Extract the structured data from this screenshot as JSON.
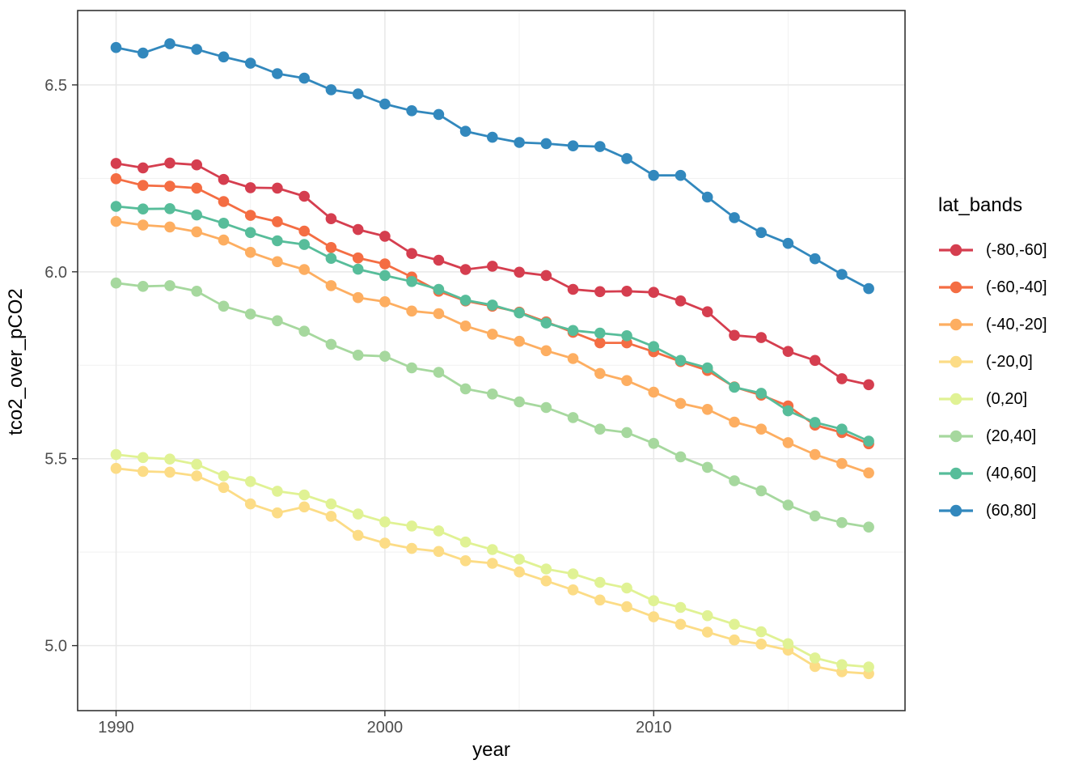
{
  "figure": {
    "background": "#ffffff",
    "panel": {
      "border_color": "#333333",
      "grid_major_color": "#e8e8e8",
      "grid_minor_color": "#f1f1f1",
      "tick_color": "#333333",
      "tick_label_color": "#4d4d4d"
    },
    "x_axis_title": "year",
    "y_axis_title": "tco2_over_pCO2"
  },
  "legend": {
    "title": "lat_bands",
    "position": "right"
  },
  "chart_data": {
    "type": "line",
    "title": "",
    "xlabel": "year",
    "ylabel": "tco2_over_pCO2",
    "grid": "on",
    "legend_position": "right",
    "x_ticks": [
      1990,
      2000,
      2010
    ],
    "x_tick_labels": [
      "1990",
      "2000",
      "2010"
    ],
    "x_minor_ticks": [
      1995,
      2005,
      2015
    ],
    "y_ticks": [
      5.0,
      5.5,
      6.0,
      6.5
    ],
    "y_tick_labels": [
      "5.0",
      "5.5",
      "6.0",
      "6.5"
    ],
    "y_minor_ticks": [
      5.25,
      5.75,
      6.25
    ],
    "xlim": [
      1988.57,
      2019.35
    ],
    "ylim": [
      4.826,
      6.699
    ],
    "x": [
      1990,
      1991,
      1992,
      1993,
      1994,
      1995,
      1996,
      1997,
      1998,
      1999,
      2000,
      2001,
      2002,
      2003,
      2004,
      2005,
      2006,
      2007,
      2008,
      2009,
      2010,
      2011,
      2012,
      2013,
      2014,
      2015,
      2016,
      2017,
      2018
    ],
    "series": [
      {
        "name": "(-80,-60]",
        "color": "#d53e4f",
        "values": [
          6.29,
          6.278,
          6.291,
          6.286,
          6.247,
          6.225,
          6.224,
          6.202,
          6.142,
          6.113,
          6.095,
          6.049,
          6.031,
          6.006,
          6.015,
          5.999,
          5.99,
          5.953,
          5.947,
          5.948,
          5.945,
          5.922,
          5.893,
          5.83,
          5.824,
          5.787,
          5.763,
          5.714,
          5.698
        ]
      },
      {
        "name": "(-60,-40]",
        "color": "#f46d43",
        "values": [
          6.249,
          6.231,
          6.229,
          6.224,
          6.188,
          6.151,
          6.134,
          6.109,
          6.065,
          6.037,
          6.021,
          5.986,
          5.948,
          5.922,
          5.908,
          5.892,
          5.866,
          5.838,
          5.81,
          5.81,
          5.786,
          5.76,
          5.736,
          5.692,
          5.67,
          5.641,
          5.59,
          5.57,
          5.54
        ]
      },
      {
        "name": "(-40,-20]",
        "color": "#fdae61",
        "values": [
          6.135,
          6.125,
          6.12,
          6.107,
          6.085,
          6.052,
          6.027,
          6.006,
          5.963,
          5.931,
          5.92,
          5.895,
          5.888,
          5.855,
          5.833,
          5.814,
          5.789,
          5.768,
          5.728,
          5.709,
          5.678,
          5.648,
          5.632,
          5.598,
          5.579,
          5.543,
          5.511,
          5.487,
          5.462
        ]
      },
      {
        "name": "(-20,0]",
        "color": "#fcdc86",
        "values": [
          5.474,
          5.466,
          5.464,
          5.454,
          5.423,
          5.379,
          5.355,
          5.371,
          5.346,
          5.295,
          5.274,
          5.26,
          5.252,
          5.227,
          5.22,
          5.197,
          5.173,
          5.149,
          5.122,
          5.104,
          5.077,
          5.057,
          5.036,
          5.015,
          5.004,
          4.988,
          4.944,
          4.93,
          4.925
        ]
      },
      {
        "name": "(0,20]",
        "color": "#e0f294",
        "values": [
          5.511,
          5.503,
          5.499,
          5.485,
          5.454,
          5.439,
          5.413,
          5.403,
          5.379,
          5.352,
          5.331,
          5.32,
          5.307,
          5.277,
          5.257,
          5.231,
          5.205,
          5.192,
          5.169,
          5.154,
          5.12,
          5.102,
          5.08,
          5.057,
          5.037,
          5.005,
          4.967,
          4.949,
          4.943
        ]
      },
      {
        "name": "(20,40]",
        "color": "#a6d89e",
        "values": [
          5.97,
          5.961,
          5.963,
          5.948,
          5.908,
          5.887,
          5.869,
          5.841,
          5.806,
          5.777,
          5.774,
          5.743,
          5.731,
          5.687,
          5.673,
          5.652,
          5.637,
          5.61,
          5.579,
          5.57,
          5.541,
          5.505,
          5.477,
          5.441,
          5.414,
          5.376,
          5.347,
          5.329,
          5.317
        ]
      },
      {
        "name": "(40,60]",
        "color": "#57bd9a",
        "values": [
          6.175,
          6.168,
          6.169,
          6.152,
          6.13,
          6.105,
          6.083,
          6.073,
          6.036,
          6.007,
          5.99,
          5.974,
          5.953,
          5.924,
          5.911,
          5.89,
          5.863,
          5.843,
          5.836,
          5.829,
          5.8,
          5.763,
          5.743,
          5.691,
          5.675,
          5.628,
          5.597,
          5.579,
          5.547
        ]
      },
      {
        "name": "(60,80]",
        "color": "#3288bd",
        "values": [
          6.6,
          6.585,
          6.61,
          6.595,
          6.575,
          6.558,
          6.53,
          6.518,
          6.487,
          6.476,
          6.449,
          6.431,
          6.421,
          6.376,
          6.36,
          6.346,
          6.343,
          6.337,
          6.335,
          6.303,
          6.258,
          6.258,
          6.2,
          6.145,
          6.105,
          6.076,
          6.035,
          5.993,
          5.955
        ]
      }
    ]
  }
}
